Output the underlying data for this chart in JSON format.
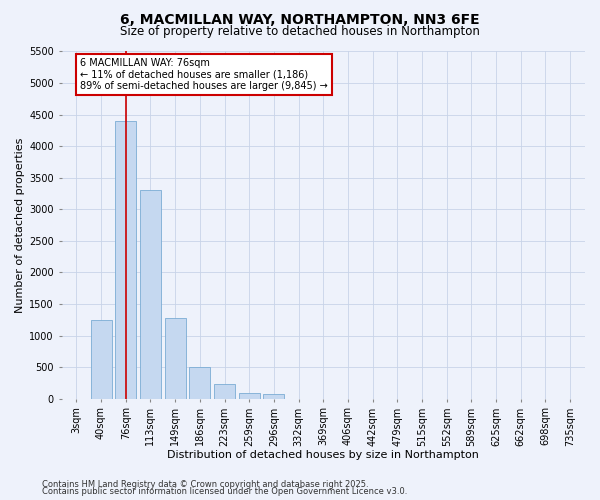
{
  "title": "6, MACMILLAN WAY, NORTHAMPTON, NN3 6FE",
  "subtitle": "Size of property relative to detached houses in Northampton",
  "xlabel": "Distribution of detached houses by size in Northampton",
  "ylabel": "Number of detached properties",
  "categories": [
    "3sqm",
    "40sqm",
    "76sqm",
    "113sqm",
    "149sqm",
    "186sqm",
    "223sqm",
    "259sqm",
    "296sqm",
    "332sqm",
    "369sqm",
    "406sqm",
    "442sqm",
    "479sqm",
    "515sqm",
    "552sqm",
    "589sqm",
    "625sqm",
    "662sqm",
    "698sqm",
    "735sqm"
  ],
  "values": [
    0,
    1250,
    4400,
    3300,
    1280,
    500,
    230,
    90,
    70,
    0,
    0,
    0,
    0,
    0,
    0,
    0,
    0,
    0,
    0,
    0,
    0
  ],
  "bar_color": "#c5d8f0",
  "bar_edge_color": "#7bacd4",
  "vline_x_idx": 2,
  "vline_color": "#cc0000",
  "annotation_text": "6 MACMILLAN WAY: 76sqm\n← 11% of detached houses are smaller (1,186)\n89% of semi-detached houses are larger (9,845) →",
  "annotation_box_color": "#ffffff",
  "annotation_box_edge": "#cc0000",
  "ylim": [
    0,
    5500
  ],
  "yticks": [
    0,
    500,
    1000,
    1500,
    2000,
    2500,
    3000,
    3500,
    4000,
    4500,
    5000,
    5500
  ],
  "footer1": "Contains HM Land Registry data © Crown copyright and database right 2025.",
  "footer2": "Contains public sector information licensed under the Open Government Licence v3.0.",
  "bg_color": "#eef2fb",
  "grid_color": "#c8d4e8",
  "title_fontsize": 10,
  "subtitle_fontsize": 8.5,
  "axis_label_fontsize": 8,
  "tick_fontsize": 7,
  "annotation_fontsize": 7,
  "footer_fontsize": 6
}
